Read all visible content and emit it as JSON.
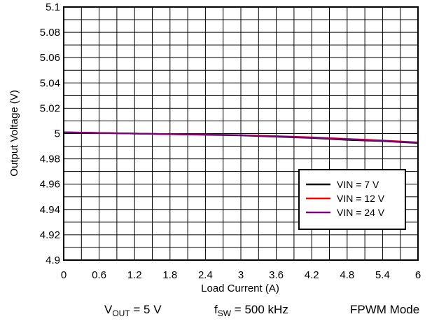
{
  "chart_data": {
    "type": "line",
    "xlabel": "Load Current (A)",
    "ylabel": "Output Voltage (V)",
    "xlim": [
      0,
      6
    ],
    "ylim": [
      4.9,
      5.1
    ],
    "x_ticks": [
      "0",
      "0.6",
      "1.2",
      "1.8",
      "2.4",
      "3",
      "3.6",
      "4.2",
      "4.8",
      "5.4",
      "6"
    ],
    "y_ticks": [
      "4.9",
      "4.92",
      "4.94",
      "4.96",
      "4.98",
      "5",
      "5.02",
      "5.04",
      "5.06",
      "5.08",
      "5.1"
    ],
    "grid": true,
    "legend_position": "bottom-right",
    "series": [
      {
        "name": "VIN = 7 V",
        "color": "#000000",
        "x": [
          0,
          0.6,
          1.2,
          1.8,
          2.4,
          3.0,
          3.6,
          4.2,
          4.8,
          5.4,
          6.0
        ],
        "y": [
          5.001,
          5.0005,
          5.0,
          4.9995,
          4.999,
          4.9985,
          4.9975,
          4.9965,
          4.995,
          4.994,
          4.9925
        ]
      },
      {
        "name": "VIN = 12 V",
        "color": "#ff0000",
        "x": [
          0,
          0.6,
          1.2,
          1.8,
          2.4,
          3.0,
          3.6,
          4.2,
          4.8,
          5.4,
          6.0
        ],
        "y": [
          5.001,
          5.0005,
          5.0,
          4.9995,
          4.9993,
          4.9988,
          4.998,
          4.997,
          4.9958,
          4.9945,
          4.993
        ]
      },
      {
        "name": "VIN = 24 V",
        "color": "#800080",
        "x": [
          0,
          0.6,
          1.2,
          1.8,
          2.4,
          3.0,
          3.6,
          4.2,
          4.8,
          5.4,
          6.0
        ],
        "y": [
          5.001,
          5.0005,
          5.0,
          4.9995,
          4.9992,
          4.9987,
          4.9978,
          4.9968,
          4.9955,
          4.9943,
          4.9928
        ]
      }
    ]
  },
  "captions": {
    "vout_prefix": "V",
    "vout_sub": "OUT",
    "vout_suffix": " = 5 V",
    "fsw_prefix": "f",
    "fsw_sub": "SW",
    "fsw_suffix": " = 500 kHz",
    "mode": "FPWM Mode"
  }
}
